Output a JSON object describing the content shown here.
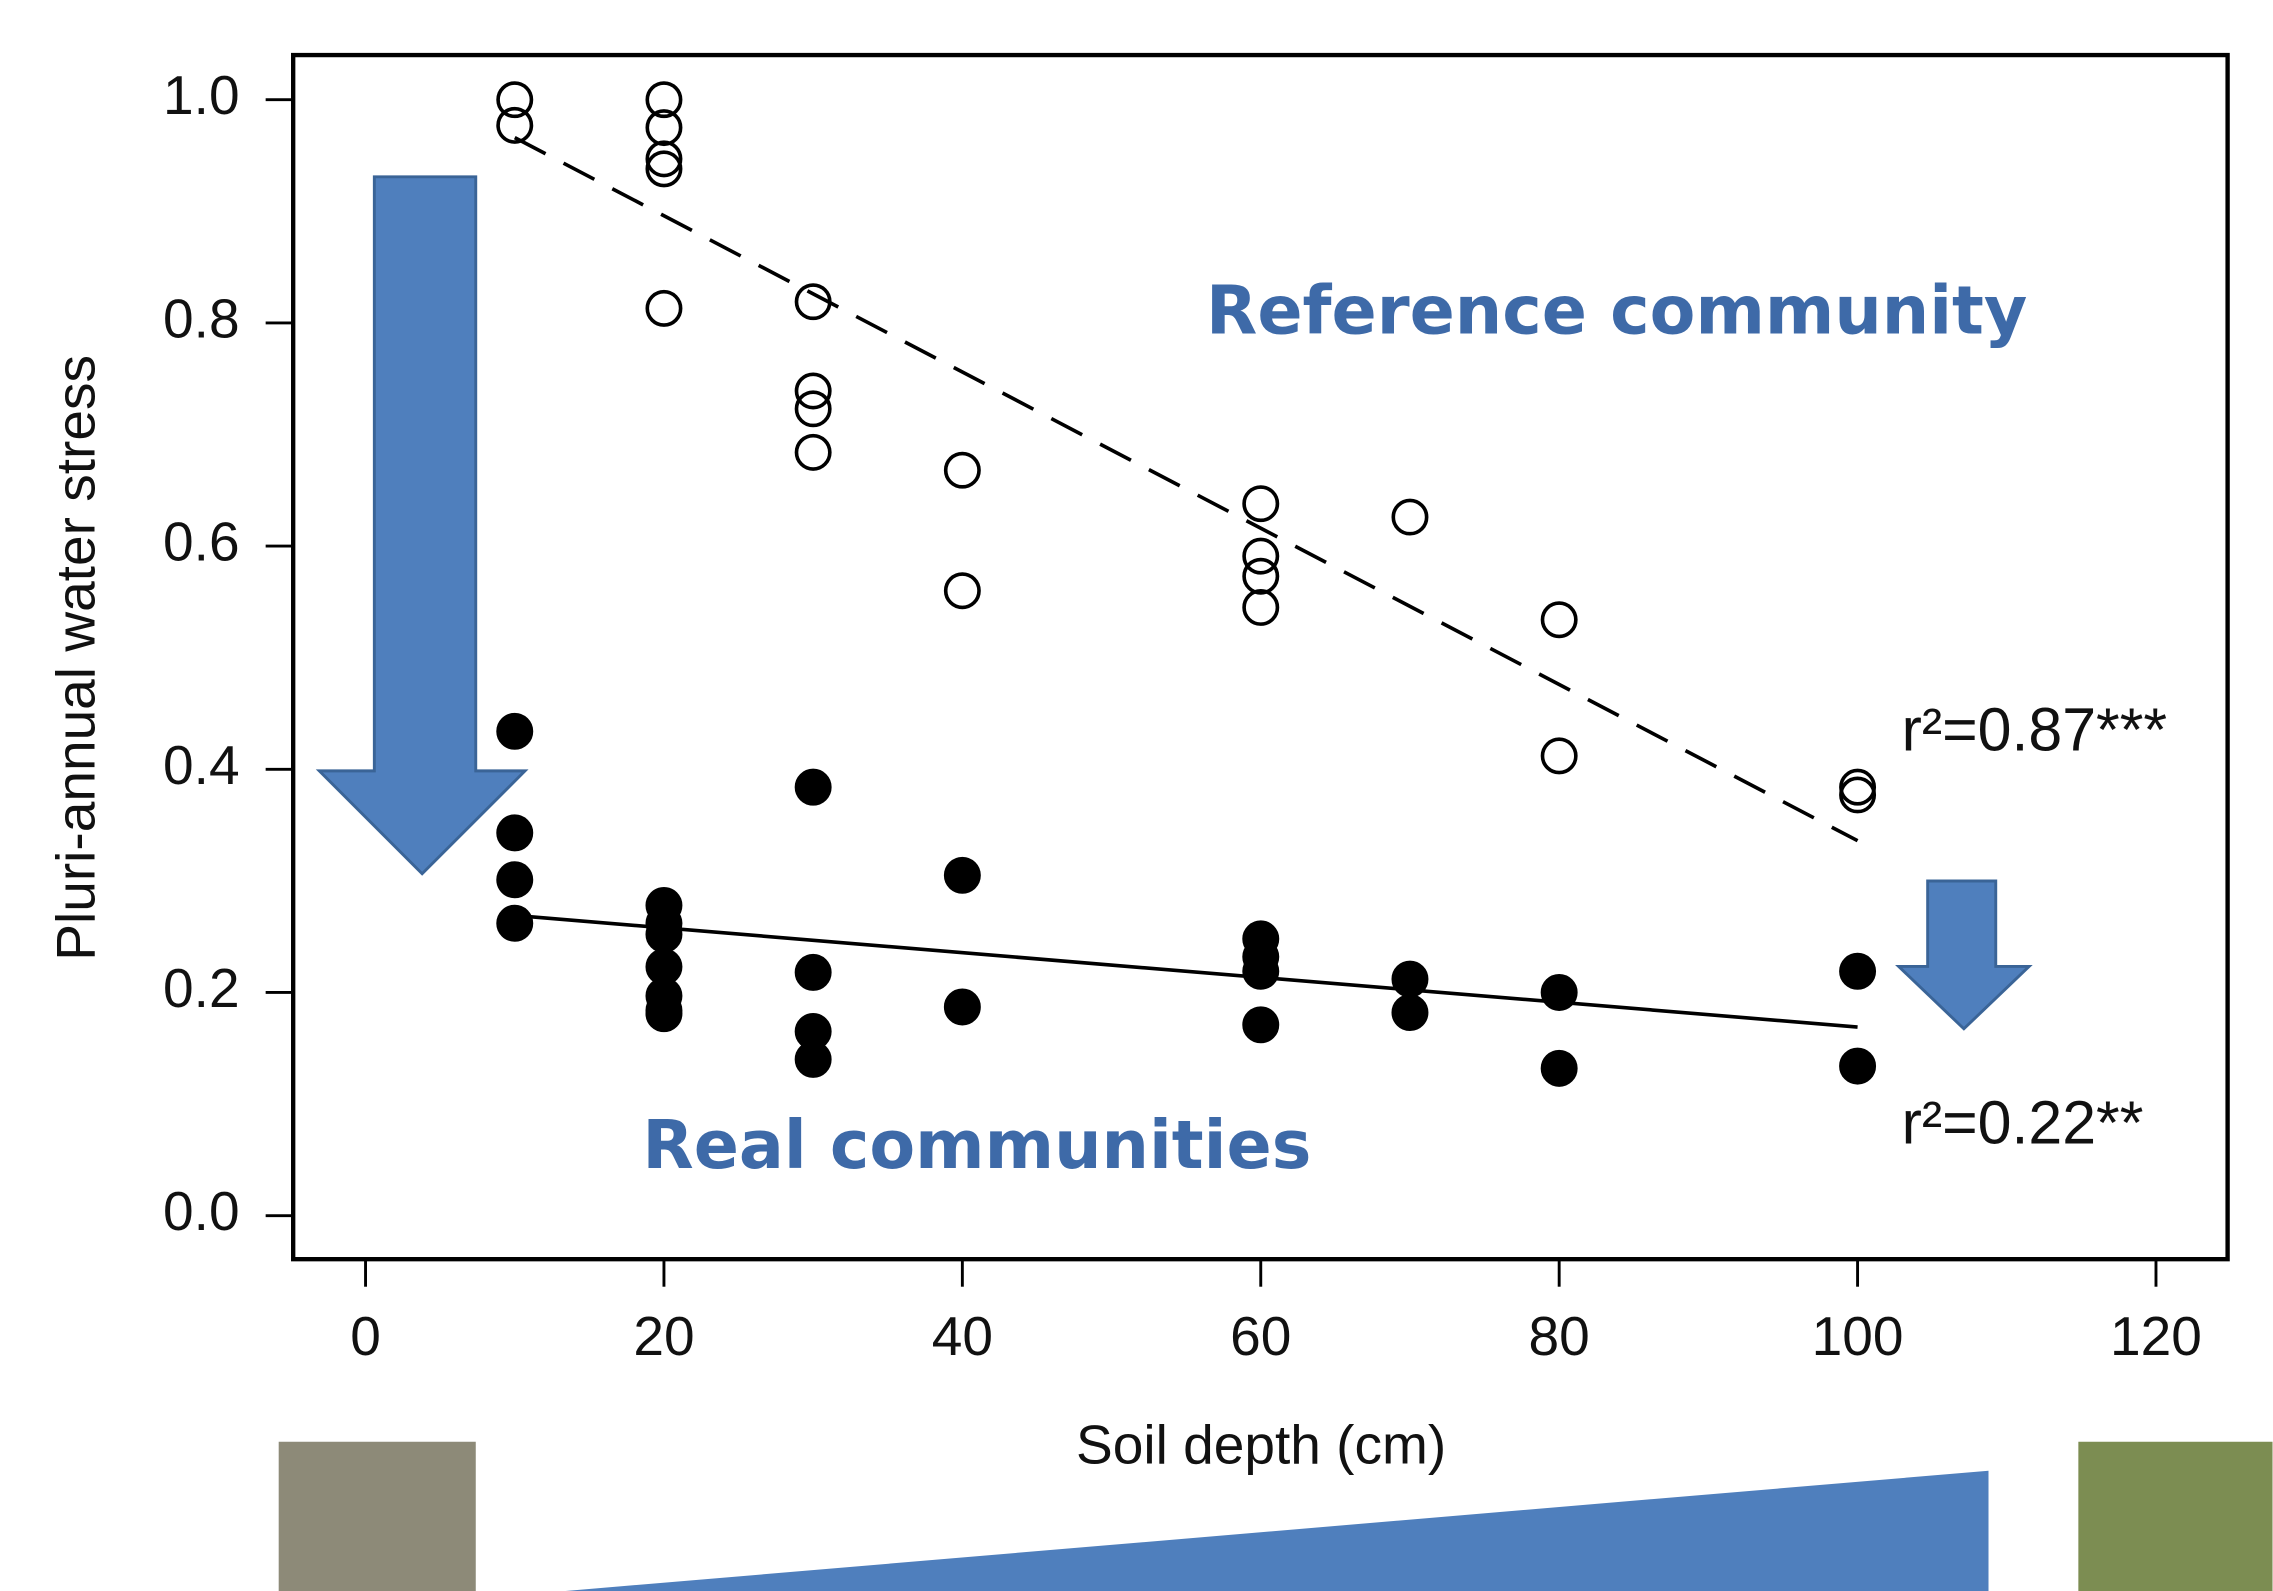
{
  "chart_data": {
    "type": "scatter",
    "xlabel": "Soil depth (cm)",
    "ylabel": "Pluri-annual water stress",
    "xlim": [
      -4.85,
      124.8
    ],
    "ylim": [
      -0.039,
      1.04
    ],
    "xticks": [
      0,
      20,
      40,
      60,
      80,
      100,
      120
    ],
    "yticks": [
      {
        "value": 0,
        "label": "0.0"
      },
      0.2,
      0.4,
      0.6,
      0.8,
      {
        "value": 1,
        "label": "1.0"
      }
    ],
    "series": [
      {
        "name": "Reference community",
        "color": "#000000",
        "marker": "open",
        "line_style": "dashed",
        "x": [
          10,
          10,
          20,
          20,
          20,
          20,
          20,
          30,
          30,
          30,
          30,
          40,
          40,
          60,
          60,
          60,
          60,
          70,
          80,
          80,
          100,
          100
        ],
        "y": [
          1.0,
          0.977,
          1.0,
          0.975,
          0.947,
          0.938,
          0.813,
          0.819,
          0.739,
          0.723,
          0.684,
          0.668,
          0.56,
          0.638,
          0.591,
          0.573,
          0.545,
          0.626,
          0.534,
          0.412,
          0.384,
          0.377
        ],
        "fit": {
          "x": [
            10,
            100
          ],
          "y": [
            0.966,
            0.336
          ]
        },
        "r2_label": "r²=0.87***"
      },
      {
        "name": "Real communities",
        "color": "#000000",
        "marker": "filled",
        "line_style": "solid",
        "x": [
          10,
          10,
          10,
          10,
          20,
          20,
          20,
          20,
          20,
          20,
          20,
          30,
          30,
          30,
          30,
          40,
          40,
          60,
          60,
          60,
          60,
          70,
          70,
          80,
          80,
          100,
          100
        ],
        "y": [
          0.434,
          0.343,
          0.301,
          0.262,
          0.278,
          0.262,
          0.252,
          0.223,
          0.197,
          0.184,
          0.181,
          0.384,
          0.218,
          0.165,
          0.14,
          0.305,
          0.187,
          0.248,
          0.232,
          0.219,
          0.171,
          0.212,
          0.182,
          0.2,
          0.132,
          0.219,
          0.134
        ],
        "fit": {
          "x": [
            10,
            100
          ],
          "y": [
            0.269,
            0.169
          ]
        },
        "r2_label": "r²=0.22**"
      }
    ]
  }
}
